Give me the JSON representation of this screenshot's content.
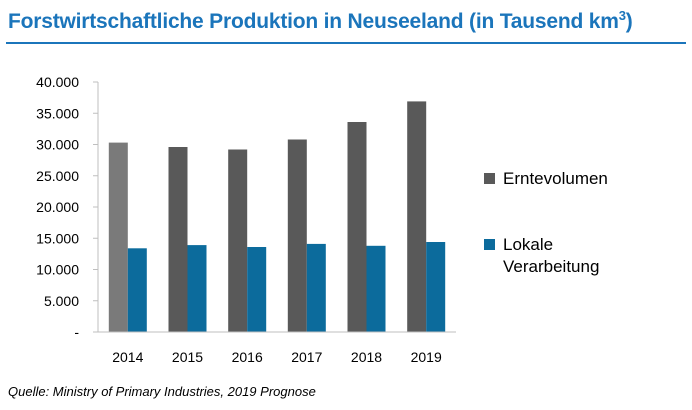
{
  "title": "Forstwirtschaftliche Produktion in Neuseeland (in Tausend km",
  "title_sup": "3",
  "title_suffix": ")",
  "source": "Quelle: Ministry of Primary Industries, 2019 Prognose",
  "colors": {
    "accent": "#1b75bb",
    "harvest_first": "#7a7a7a",
    "harvest": "#595959",
    "local": "#0c6b9c",
    "axis": "#bfbfbf"
  },
  "chart_data": {
    "type": "bar",
    "categories": [
      "2014",
      "2015",
      "2016",
      "2017",
      "2018",
      "2019"
    ],
    "series": [
      {
        "name": "Erntevolumen",
        "values": [
          30300,
          29600,
          29200,
          30800,
          33600,
          36900
        ]
      },
      {
        "name": "Lokale Verarbeitung",
        "values": [
          13400,
          13900,
          13600,
          14100,
          13800,
          14400
        ]
      }
    ],
    "ylim": [
      0,
      40000
    ],
    "yticks": [
      {
        "value": 0,
        "label": "-"
      },
      {
        "value": 5000,
        "label": "5.000"
      },
      {
        "value": 10000,
        "label": "10.000"
      },
      {
        "value": 15000,
        "label": "15.000"
      },
      {
        "value": 20000,
        "label": "20.000"
      },
      {
        "value": 25000,
        "label": "25.000"
      },
      {
        "value": 30000,
        "label": "30.000"
      },
      {
        "value": 35000,
        "label": "35.000"
      },
      {
        "value": 40000,
        "label": "40.000"
      }
    ],
    "grid": false,
    "legend": "right"
  }
}
